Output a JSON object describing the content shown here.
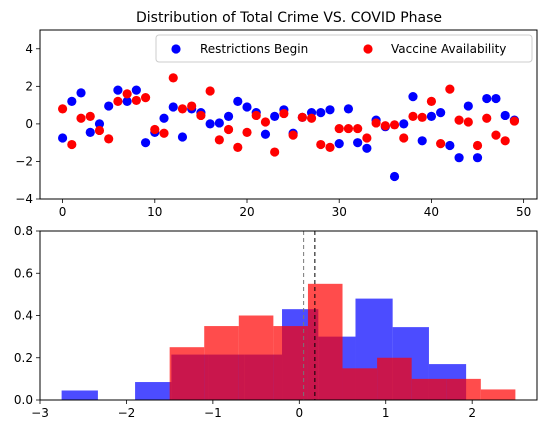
{
  "chart_data": [
    {
      "type": "scatter",
      "title": "Distribution of Total Crime VS. COVID Phase",
      "xlabel": "",
      "ylabel": "",
      "xlim": [
        -2.45,
        51.45
      ],
      "ylim": [
        -4,
        5
      ],
      "xticks": [
        0,
        10,
        20,
        30,
        40,
        50
      ],
      "yticks": [
        -4,
        -2,
        0,
        2,
        4
      ],
      "grid": false,
      "legend": {
        "placement": "upper-right",
        "ncol": 2
      },
      "series": [
        {
          "name": "Restrictions Begin",
          "color": "#0000ff",
          "x": [
            0,
            1,
            2,
            3,
            4,
            5,
            6,
            7,
            8,
            9,
            10,
            11,
            12,
            13,
            14,
            15,
            16,
            17,
            18,
            19,
            20,
            21,
            22,
            23,
            24,
            25,
            26,
            27,
            28,
            29,
            30,
            31,
            32,
            33,
            34,
            35,
            36,
            37,
            38,
            39,
            40,
            41,
            42,
            43,
            44,
            45,
            46,
            47,
            48,
            49
          ],
          "y": [
            -0.75,
            1.2,
            1.65,
            -0.45,
            0.0,
            0.95,
            1.8,
            1.2,
            1.8,
            -1.0,
            -0.45,
            0.3,
            0.9,
            -0.7,
            0.8,
            0.6,
            0.0,
            0.05,
            0.4,
            1.2,
            0.9,
            0.6,
            -0.55,
            0.4,
            0.75,
            -0.5,
            0.35,
            0.6,
            0.6,
            0.75,
            -1.05,
            0.8,
            -1.0,
            -1.3,
            0.2,
            -0.15,
            -2.8,
            0.0,
            1.45,
            -0.9,
            0.4,
            0.6,
            -1.15,
            -1.8,
            0.95,
            -1.8,
            1.35,
            1.35,
            0.45,
            0.2
          ]
        },
        {
          "name": "Vaccine Availability",
          "color": "#ff0000",
          "x": [
            0,
            1,
            2,
            3,
            4,
            5,
            6,
            7,
            8,
            9,
            10,
            11,
            12,
            13,
            14,
            15,
            16,
            17,
            18,
            19,
            20,
            21,
            22,
            23,
            24,
            25,
            26,
            27,
            28,
            29,
            30,
            31,
            32,
            33,
            34,
            35,
            36,
            37,
            38,
            39,
            40,
            41,
            42,
            43,
            44,
            45,
            46,
            47,
            48,
            49
          ],
          "y": [
            0.8,
            -1.1,
            0.3,
            0.4,
            -0.35,
            -0.8,
            1.2,
            1.6,
            1.25,
            1.4,
            -0.3,
            -0.5,
            2.45,
            0.8,
            0.95,
            0.45,
            1.75,
            -0.85,
            -0.3,
            -1.25,
            -0.45,
            0.45,
            0.1,
            -1.5,
            0.55,
            -0.6,
            0.35,
            0.3,
            -1.1,
            -1.25,
            -0.25,
            -0.25,
            -0.25,
            -0.75,
            0.05,
            -0.1,
            -0.05,
            -0.75,
            0.4,
            0.35,
            1.2,
            -1.05,
            1.85,
            0.2,
            0.1,
            -1.15,
            0.3,
            -0.6,
            -0.9,
            0.15
          ]
        }
      ]
    },
    {
      "type": "bar",
      "subtype": "histogram",
      "title": "",
      "xlabel": "",
      "ylabel": "",
      "xlim": [
        -3.0,
        2.75
      ],
      "ylim": [
        0,
        0.8
      ],
      "xticks": [
        -3,
        -2,
        -1,
        0,
        1,
        2
      ],
      "yticks": [
        0.0,
        0.2,
        0.4,
        0.6,
        0.8
      ],
      "grid": false,
      "series": [
        {
          "name": "Restrictions Begin",
          "color": "#0000ff",
          "opacity": 0.7,
          "bins": [
            {
              "x0": -2.75,
              "x1": -2.33,
              "value": 0.045
            },
            {
              "x0": -2.33,
              "x1": -1.9,
              "value": 0.0
            },
            {
              "x0": -1.9,
              "x1": -1.48,
              "value": 0.085
            },
            {
              "x0": -1.48,
              "x1": -1.05,
              "value": 0.215
            },
            {
              "x0": -1.05,
              "x1": -0.63,
              "value": 0.215
            },
            {
              "x0": -0.63,
              "x1": -0.2,
              "value": 0.215
            },
            {
              "x0": -0.2,
              "x1": 0.22,
              "value": 0.43
            },
            {
              "x0": 0.22,
              "x1": 0.65,
              "value": 0.3
            },
            {
              "x0": 0.65,
              "x1": 1.08,
              "value": 0.48
            },
            {
              "x0": 1.08,
              "x1": 1.5,
              "value": 0.345
            },
            {
              "x0": 1.5,
              "x1": 1.93,
              "value": 0.17
            }
          ],
          "mean": 0.05
        },
        {
          "name": "Vaccine Availability",
          "color": "#ff0000",
          "opacity": 0.7,
          "bins": [
            {
              "x0": -1.5,
              "x1": -1.1,
              "value": 0.25
            },
            {
              "x0": -1.1,
              "x1": -0.7,
              "value": 0.35
            },
            {
              "x0": -0.7,
              "x1": -0.3,
              "value": 0.4
            },
            {
              "x0": -0.3,
              "x1": 0.1,
              "value": 0.35
            },
            {
              "x0": 0.1,
              "x1": 0.5,
              "value": 0.55
            },
            {
              "x0": 0.5,
              "x1": 0.9,
              "value": 0.15
            },
            {
              "x0": 0.9,
              "x1": 1.3,
              "value": 0.2
            },
            {
              "x0": 1.3,
              "x1": 1.7,
              "value": 0.1
            },
            {
              "x0": 1.7,
              "x1": 2.1,
              "value": 0.1
            },
            {
              "x0": 2.1,
              "x1": 2.5,
              "value": 0.05
            }
          ],
          "mean": 0.18
        }
      ]
    }
  ]
}
